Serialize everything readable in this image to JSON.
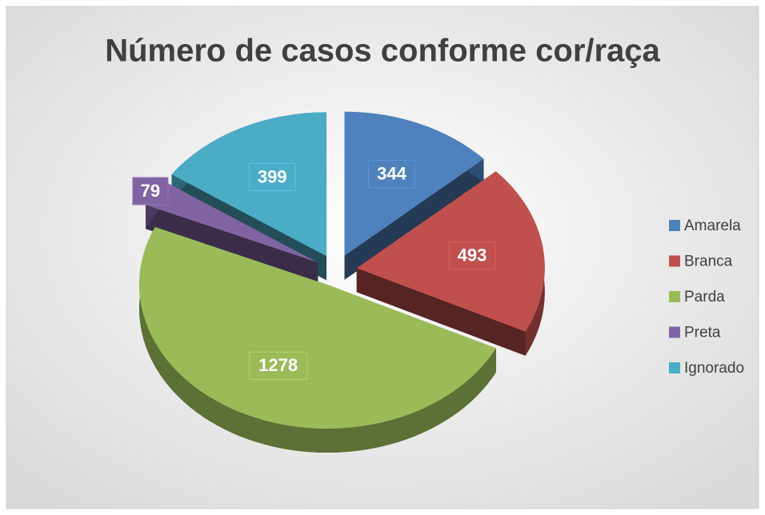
{
  "chart_data": {
    "type": "pie",
    "title": "Número de casos conforme cor/raça",
    "categories": [
      "Amarela",
      "Branca",
      "Parda",
      "Preta",
      "Ignorado"
    ],
    "values": [
      344,
      493,
      1278,
      79,
      399
    ],
    "colors": [
      "#4f81bd",
      "#c0504d",
      "#9bbb59",
      "#8064a2",
      "#4bacc6"
    ],
    "legend": "right",
    "exploded": true,
    "three_d": true
  }
}
